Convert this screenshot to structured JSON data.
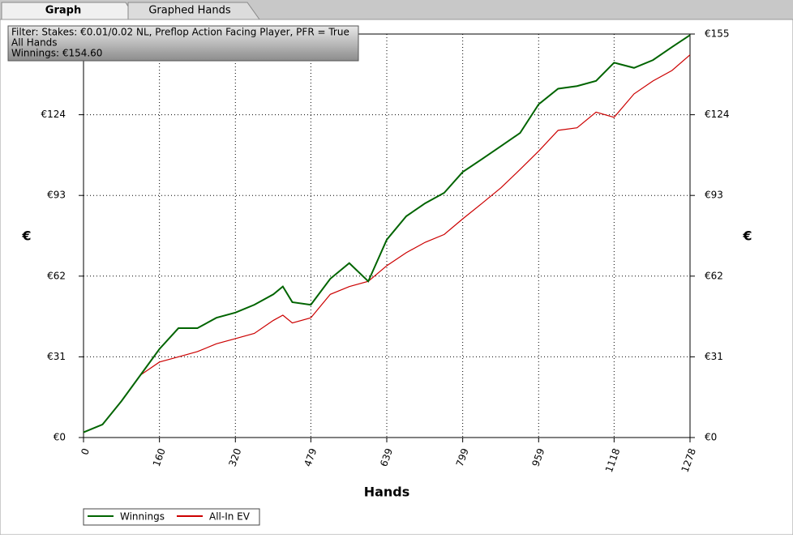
{
  "tabs": [
    "Graph",
    "Graphed Hands"
  ],
  "chart_data": {
    "type": "line",
    "annotations": [
      "Filter: Stakes: €0.01/0.02 NL, Preflop Action Facing Player, PFR = True",
      "All Hands",
      "Winnings: €154.60"
    ],
    "xlabel": "Hands",
    "ylabel": "€",
    "y2label": "€",
    "x": [
      0,
      40,
      80,
      120,
      160,
      200,
      240,
      280,
      320,
      360,
      400,
      420,
      440,
      479,
      520,
      560,
      600,
      639,
      680,
      720,
      760,
      799,
      840,
      880,
      920,
      959,
      1000,
      1040,
      1080,
      1118,
      1160,
      1200,
      1240,
      1278
    ],
    "series": [
      {
        "name": "Winnings",
        "color": "#006400",
        "values": [
          2,
          5,
          14,
          24,
          34,
          42,
          42,
          46,
          48,
          51,
          55,
          58,
          52,
          51,
          61,
          67,
          60,
          76,
          85,
          90,
          94,
          102,
          107,
          112,
          117,
          128,
          134,
          135,
          137,
          144,
          142,
          145,
          150,
          154.6
        ]
      },
      {
        "name": "All-In EV",
        "color": "#cc0000",
        "values": [
          2,
          5,
          14,
          24,
          29,
          31,
          33,
          36,
          38,
          40,
          45,
          47,
          44,
          46,
          55,
          58,
          60,
          66,
          71,
          75,
          78,
          84,
          90,
          96,
          103,
          110,
          118,
          119,
          125,
          123,
          132,
          137,
          141,
          147
        ]
      }
    ],
    "xlim": [
      0,
      1278
    ],
    "xticks": [
      0,
      160,
      320,
      479,
      639,
      799,
      959,
      1118,
      1278
    ],
    "ylim": [
      0,
      155
    ],
    "yticks": [
      {
        "value": 0,
        "label": "€0"
      },
      {
        "value": 31,
        "label": "€31"
      },
      {
        "value": 62,
        "label": "€62"
      },
      {
        "value": 93,
        "label": "€93"
      },
      {
        "value": 124,
        "label": "€124"
      },
      {
        "value": 155,
        "label": "€155"
      }
    ],
    "y2lim": [
      0,
      155
    ],
    "y2ticks": [
      {
        "value": 0,
        "label": "€0"
      },
      {
        "value": 31,
        "label": "€31"
      },
      {
        "value": 62,
        "label": "€62"
      },
      {
        "value": 93,
        "label": "€93"
      },
      {
        "value": 124,
        "label": "€124"
      },
      {
        "value": 155,
        "label": "€155"
      }
    ],
    "grid": true,
    "legend": "bottom-left"
  }
}
